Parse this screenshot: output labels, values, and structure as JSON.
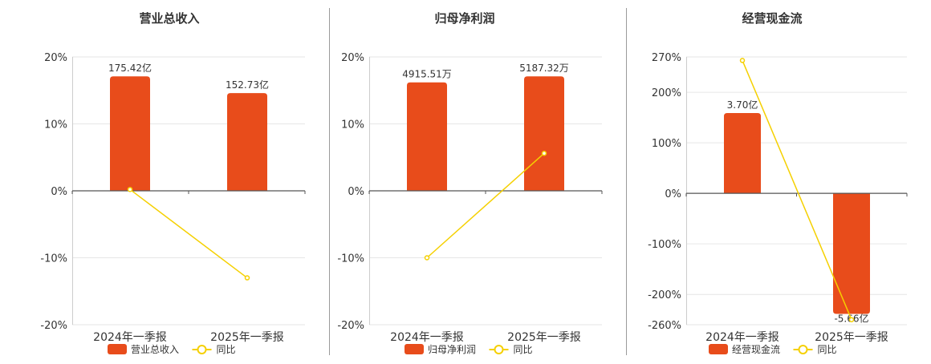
{
  "chart_data": [
    {
      "type": "bar",
      "title": "营业总收入",
      "categories": [
        "2024年一季报",
        "2025年一季报"
      ],
      "series": [
        {
          "name": "营业总收入",
          "type": "bar",
          "values": [
            175.42,
            152.73
          ],
          "value_labels": [
            "175.42亿",
            "152.73亿"
          ],
          "color": "#E84C1B"
        },
        {
          "name": "同比",
          "type": "line",
          "values": [
            0.2,
            -13.0
          ],
          "color": "#F5D000"
        }
      ],
      "ylim": [
        -20,
        20
      ],
      "yticks": [
        20,
        10,
        0,
        -10,
        -20
      ],
      "ytick_labels": [
        "20%",
        "10%",
        "0%",
        "-10%",
        "-20%"
      ],
      "bar_ratio": [
        0.855,
        0.73
      ],
      "legend": "bottom",
      "grid": true
    },
    {
      "type": "bar",
      "title": "归母净利润",
      "categories": [
        "2024年一季报",
        "2025年一季报"
      ],
      "series": [
        {
          "name": "归母净利润",
          "type": "bar",
          "values": [
            4915.51,
            5187.32
          ],
          "value_labels": [
            "4915.51万",
            "5187.32万"
          ],
          "color": "#E84C1B"
        },
        {
          "name": "同比",
          "type": "line",
          "values": [
            -10.0,
            5.6
          ],
          "color": "#F5D000"
        }
      ],
      "ylim": [
        -20,
        20
      ],
      "yticks": [
        20,
        10,
        0,
        -10,
        -20
      ],
      "ytick_labels": [
        "20%",
        "10%",
        "0%",
        "-10%",
        "-20%"
      ],
      "bar_ratio": [
        0.81,
        0.855
      ],
      "legend": "bottom",
      "grid": true
    },
    {
      "type": "bar",
      "title": "经营现金流",
      "categories": [
        "2024年一季报",
        "2025年一季报"
      ],
      "series": [
        {
          "name": "经营现金流",
          "type": "bar",
          "values": [
            3.7,
            -5.66
          ],
          "value_labels": [
            "3.70亿",
            "-5.66亿"
          ],
          "color": "#E84C1B"
        },
        {
          "name": "同比",
          "type": "line",
          "values": [
            263.0,
            -250.0
          ],
          "color": "#F5D000"
        }
      ],
      "ylim": [
        -260,
        270
      ],
      "yticks": [
        270,
        200,
        100,
        0,
        -100,
        -200,
        -260
      ],
      "ytick_labels": [
        "270%",
        "200%",
        "100%",
        "0%",
        "-100%",
        "-200%",
        "-260%"
      ],
      "bar_ratio": [
        0.6,
        -0.9
      ],
      "legend": "bottom",
      "grid": true
    }
  ]
}
